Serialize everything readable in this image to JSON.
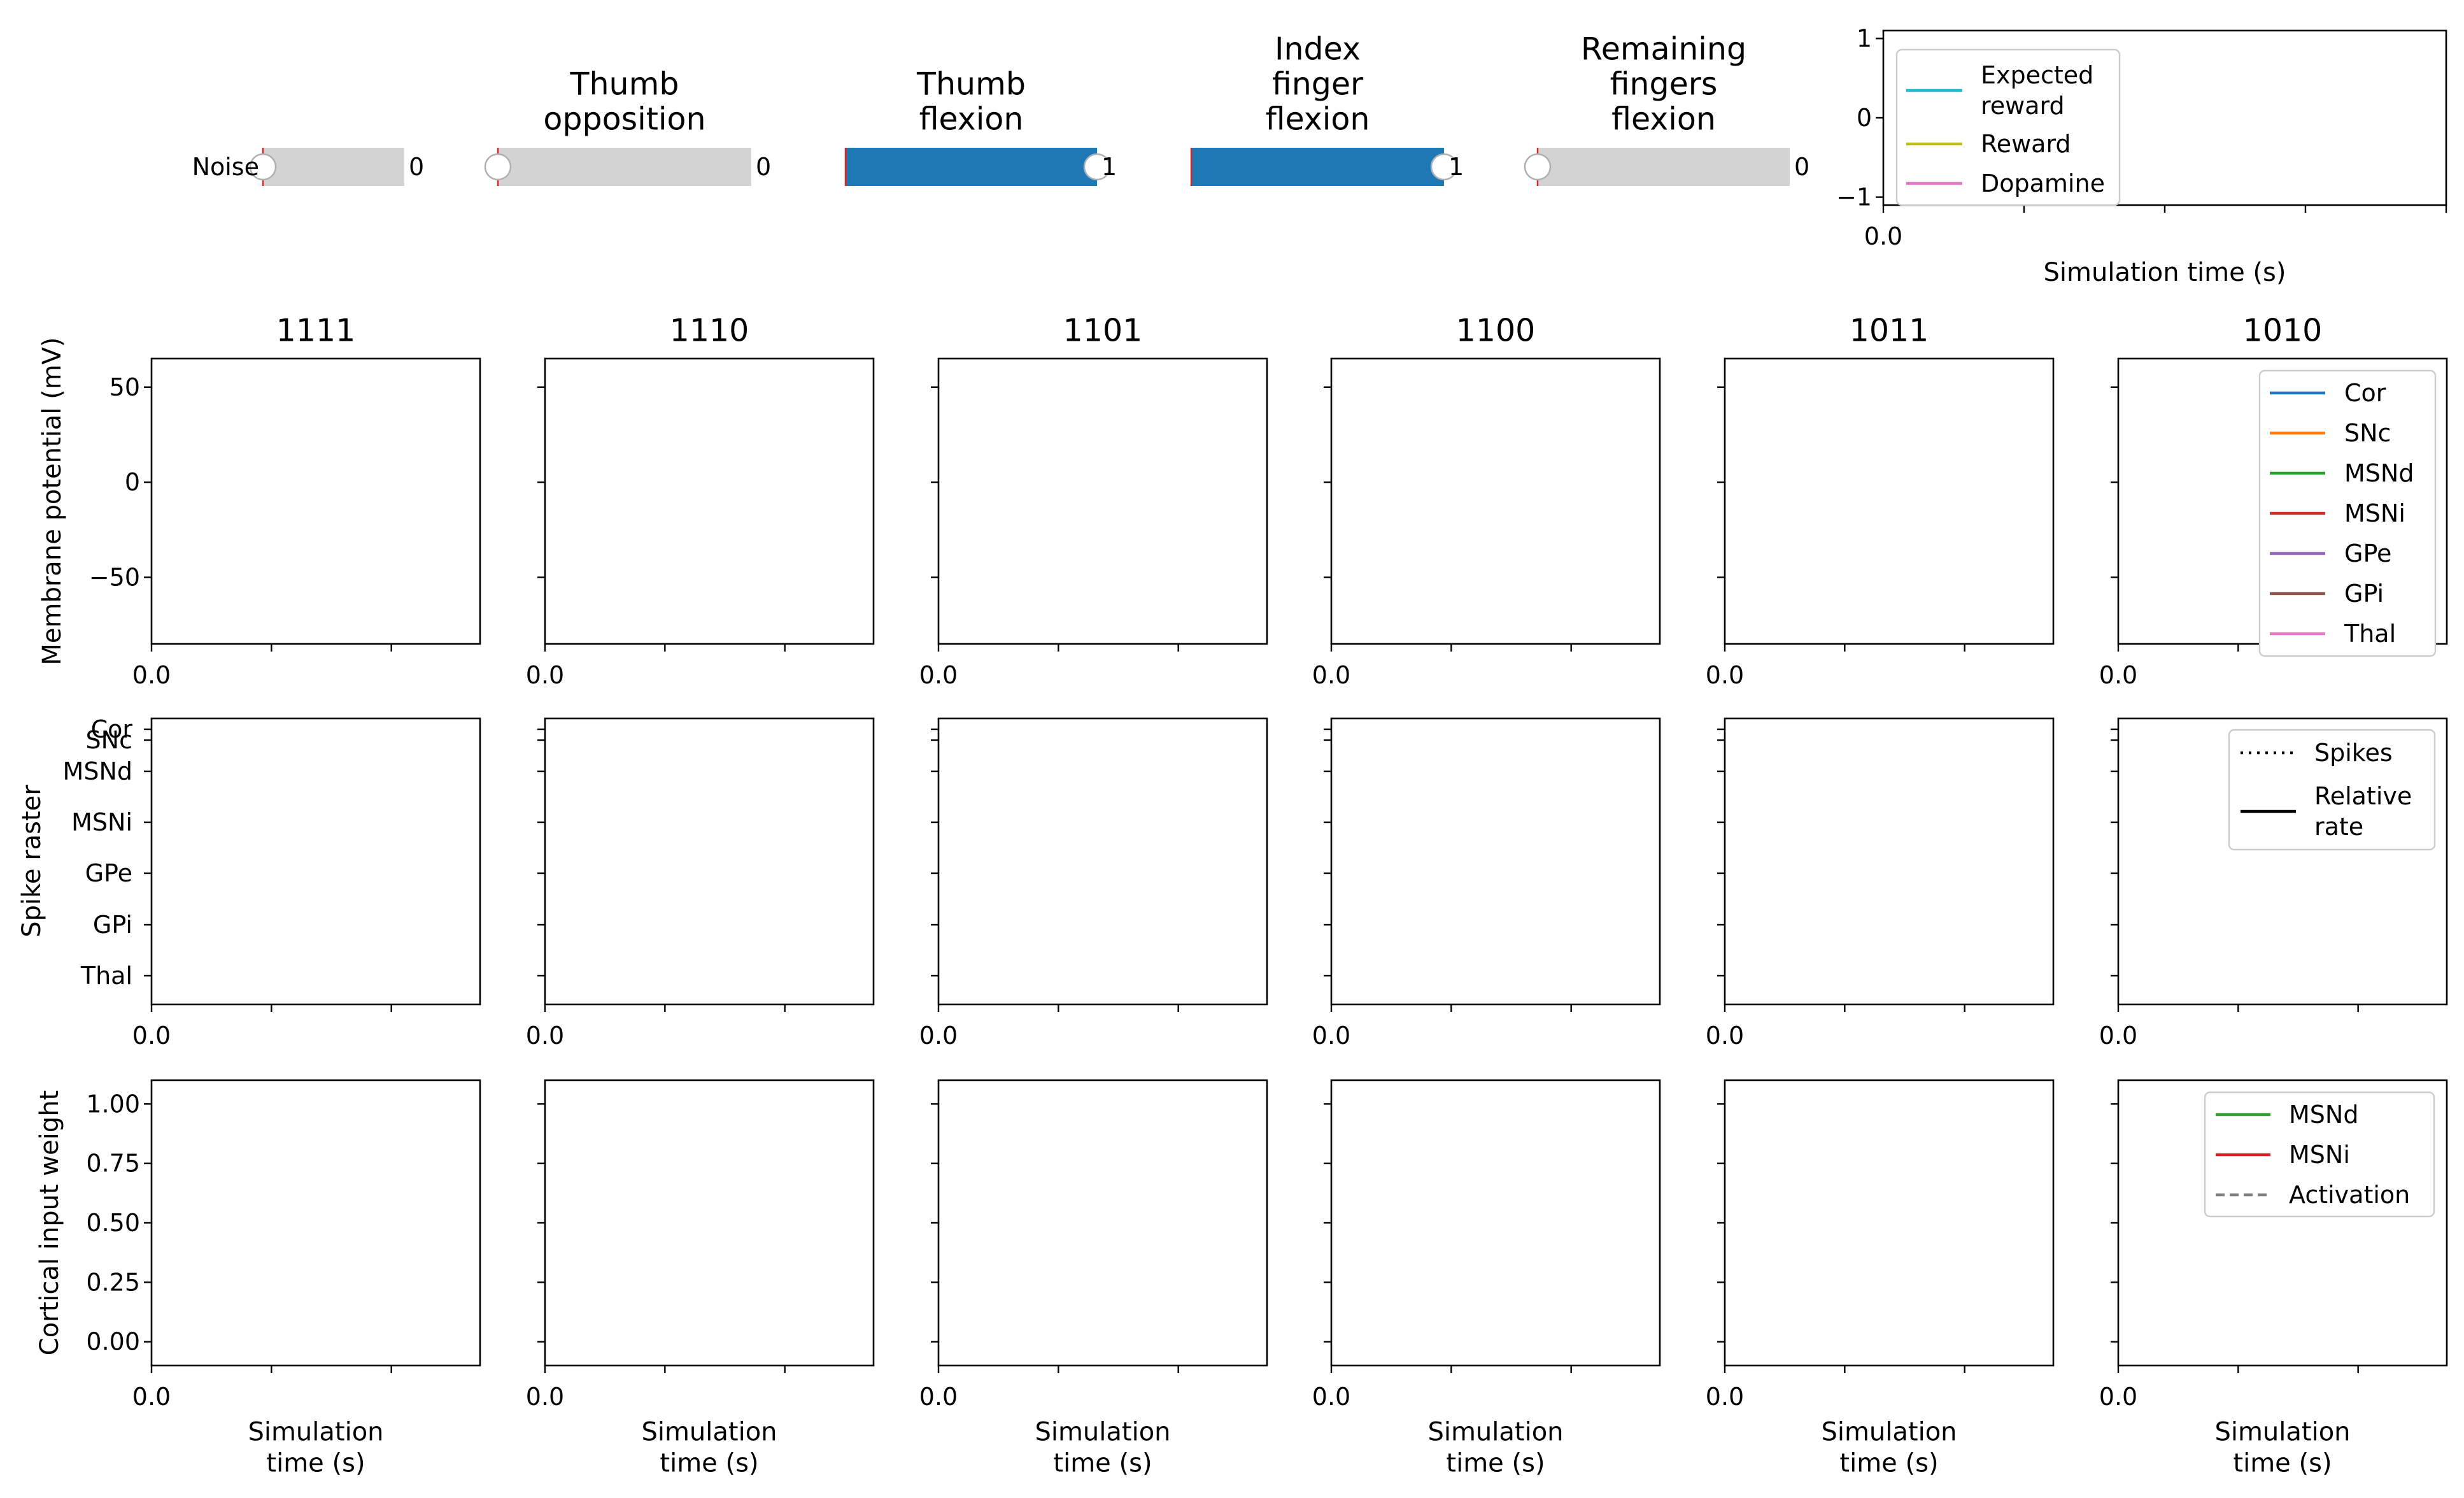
{
  "sliders": [
    {
      "title": "",
      "label": "Noise",
      "value": 0,
      "value_text": "0"
    },
    {
      "title": "Thumb\nopposition",
      "label": "",
      "value": 0,
      "value_text": "0"
    },
    {
      "title": "Thumb\nflexion",
      "label": "",
      "value": 1,
      "value_text": "1"
    },
    {
      "title": "Index\nfinger\nflexion",
      "label": "",
      "value": 1,
      "value_text": "1"
    },
    {
      "title": "Remaining\nfingers\nflexion",
      "label": "",
      "value": 0,
      "value_text": "0"
    }
  ],
  "colors": {
    "slider_fill": "#1f77b4",
    "slider_track": "#d3d3d3",
    "slider_marker": "#d62728",
    "Cor": "#1f77b4",
    "SNc": "#ff7f0e",
    "MSNd": "#2ca02c",
    "MSNi": "#d62728",
    "GPe": "#9467bd",
    "GPi": "#8c564b",
    "Thal": "#e377c2",
    "Expected reward": "#17becf",
    "Reward": "#bcbd22",
    "Dopamine": "#e377c2",
    "Activation": "#7f7f7f"
  },
  "chart_data": [
    {
      "id": "reward-plot",
      "type": "line",
      "xlabel": "Simulation time (s)",
      "ylabel": "",
      "x_ticks": [
        "0.0"
      ],
      "y_ticks": [
        -1,
        0,
        1
      ],
      "ylim": [
        -1.1,
        1.1
      ],
      "legend": [
        "Expected\nreward",
        "Reward",
        "Dopamine"
      ],
      "legend_placement": "upper-left",
      "series": []
    },
    {
      "id": "membrane-potential",
      "type": "line",
      "ylabel": "Membrane potential (mV)",
      "panel_titles": [
        "1111",
        "1110",
        "1101",
        "1100",
        "1011",
        "1010"
      ],
      "x_ticks": [
        "0.0"
      ],
      "y_ticks": [
        50,
        0,
        -50
      ],
      "y_tick_labels": [
        "50",
        "0",
        "−50"
      ],
      "ylim": [
        -85,
        65
      ],
      "legend": [
        "Cor",
        "SNc",
        "MSNd",
        "MSNi",
        "GPe",
        "GPi",
        "Thal"
      ],
      "legend_placement": "right",
      "series": []
    },
    {
      "id": "spike-raster",
      "type": "scatter",
      "ylabel": "Spike raster",
      "x_ticks": [
        "0.0"
      ],
      "y_categories": [
        "Cor",
        "SNc",
        "MSNd",
        "MSNi",
        "GPe",
        "GPi",
        "Thal"
      ],
      "legend": [
        "Spikes",
        "Relative\nrate"
      ],
      "legend_placement": "upper-right",
      "series": []
    },
    {
      "id": "cortical-weight",
      "type": "line",
      "ylabel": "Cortical input weight",
      "xlabel": "Simulation\ntime (s)",
      "x_ticks": [
        "0.0"
      ],
      "y_ticks": [
        "1.00",
        "0.75",
        "0.50",
        "0.25",
        "0.00"
      ],
      "ylim": [
        -0.1,
        1.1
      ],
      "legend": [
        "MSNd",
        "MSNi",
        "Activation"
      ],
      "legend_placement": "upper-right",
      "series": []
    }
  ]
}
